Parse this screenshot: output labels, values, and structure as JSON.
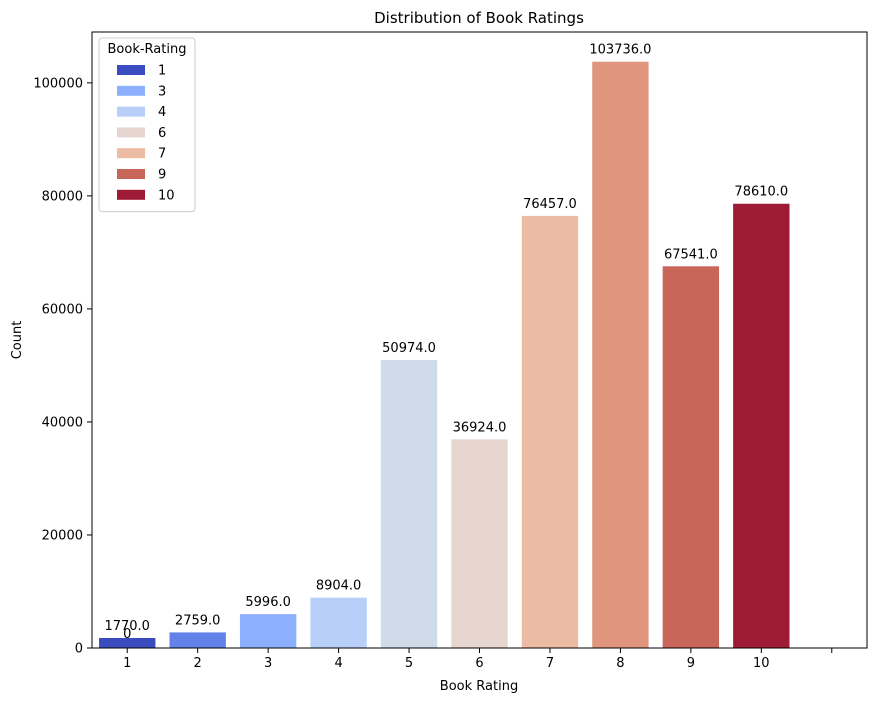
{
  "chart_data": {
    "type": "bar",
    "title": "Distribution of Book Ratings",
    "xlabel": "Book Rating",
    "ylabel": "Count",
    "categories": [
      "1",
      "2",
      "3",
      "4",
      "5",
      "6",
      "7",
      "8",
      "9",
      "10"
    ],
    "values": [
      1770,
      2759,
      5996,
      8904,
      50974,
      36924,
      76457,
      103736,
      67541,
      78610
    ],
    "data_labels": [
      "1770.0",
      "2759.0",
      "5996.0",
      "8904.0",
      "50974.0",
      "36924.0",
      "76457.0",
      "103736.0",
      "67541.0",
      "78610.0"
    ],
    "bar_colors": [
      "#3b4cc0",
      "#6282ea",
      "#8db0fe",
      "#b7cff9",
      "#d0dbea",
      "#e7d6cf",
      "#ecbba4",
      "#e0967c",
      "#c8665a",
      "#9e1a35"
    ],
    "extra_labels": [
      {
        "category": "1",
        "text": "0"
      }
    ],
    "ylim": [
      0,
      109000
    ],
    "yticks": [
      0,
      20000,
      40000,
      60000,
      80000,
      100000
    ],
    "ytick_labels": [
      "0",
      "20000",
      "40000",
      "60000",
      "80000",
      "100000"
    ],
    "grid": false,
    "legend": {
      "title": "Book-Rating",
      "placement": "top-left",
      "items": [
        {
          "label": "1",
          "color": "#3b4cc0"
        },
        {
          "label": "3",
          "color": "#8db0fe"
        },
        {
          "label": "4",
          "color": "#b7cff9"
        },
        {
          "label": "6",
          "color": "#e7d6cf"
        },
        {
          "label": "7",
          "color": "#ecbba4"
        },
        {
          "label": "9",
          "color": "#c8665a"
        },
        {
          "label": "10",
          "color": "#9e1a35"
        }
      ]
    }
  }
}
